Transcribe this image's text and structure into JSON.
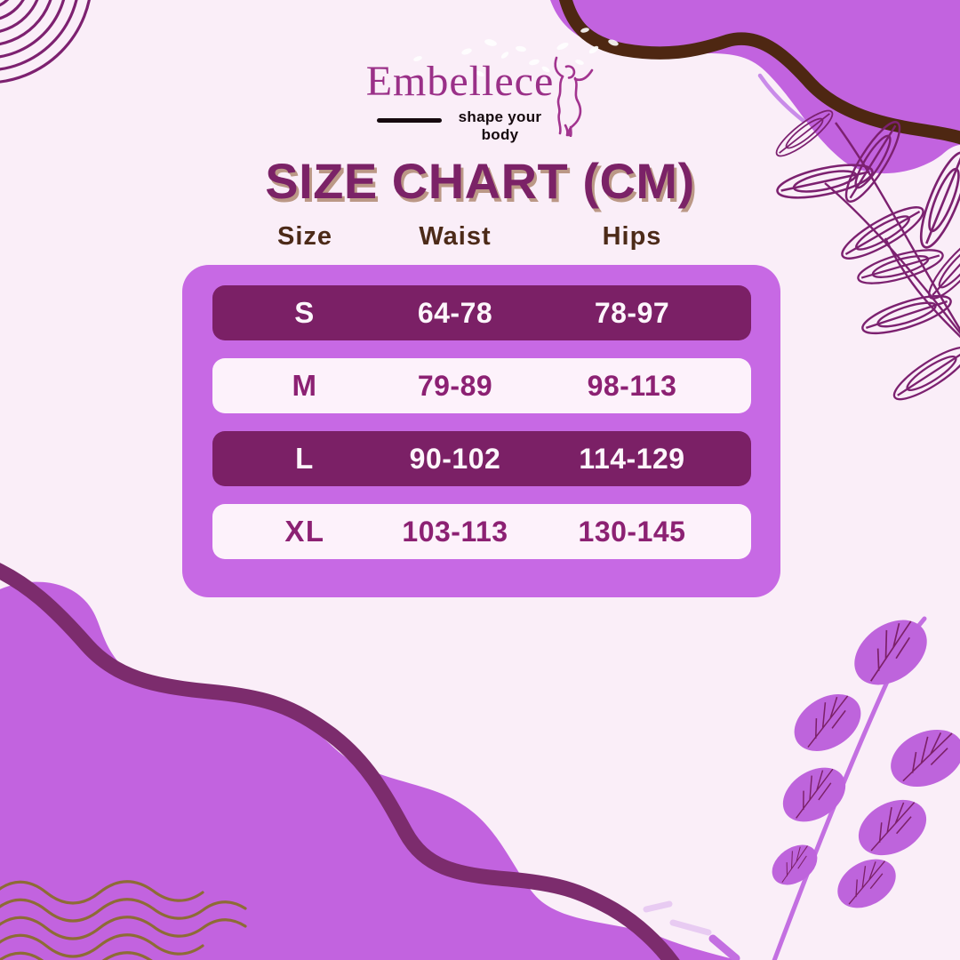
{
  "brand": {
    "name": "Embellece",
    "tagline": "shape your body"
  },
  "page": {
    "title": "SIZE CHART (CM)"
  },
  "size_table": {
    "columns": [
      "Size",
      "Waist",
      "Hips"
    ],
    "rows": [
      {
        "size": "S",
        "waist": "64-78",
        "hips": "78-97",
        "variant": "dark"
      },
      {
        "size": "M",
        "waist": "79-89",
        "hips": "98-113",
        "variant": "light"
      },
      {
        "size": "L",
        "waist": "90-102",
        "hips": "114-129",
        "variant": "dark"
      },
      {
        "size": "XL",
        "waist": "103-113",
        "hips": "130-145",
        "variant": "light"
      }
    ]
  },
  "colors": {
    "background": "#FAEEF8",
    "brand_purple": "#9A3088",
    "title_purple": "#7B2267",
    "title_shadow_tan": "#BB9886",
    "header_brown": "#4C2A18",
    "table_container_purple": "#C769E4",
    "row_dark_purple": "#7B2066",
    "row_light_pink": "#FDF2FB",
    "row_light_text_purple": "#8C2173",
    "blob_purple": "#C263DF",
    "brown_wave": "#4E2712",
    "plum_wave": "#7C2C6D",
    "olive_wave": "#8D6C35",
    "leaf_fill_purple": "#BE64DC",
    "leaf_vein_purple": "#7B2168"
  }
}
